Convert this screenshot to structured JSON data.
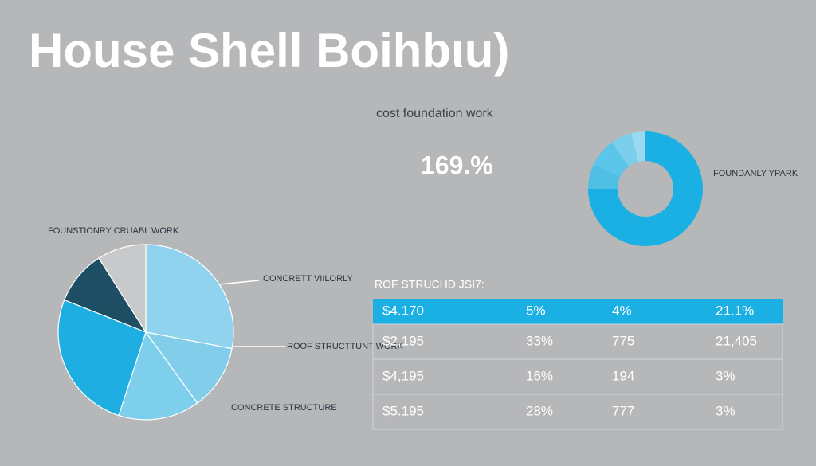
{
  "title": "House Shell Boihbιu)",
  "kpi": {
    "label": "cost foundation work",
    "value": "169.%"
  },
  "chart_data": [
    {
      "type": "pie",
      "values": [
        28,
        12,
        15,
        26,
        10,
        9
      ],
      "colors": [
        "#8fd3ee",
        "#82cde9",
        "#7dcfeb",
        "#1eaee2",
        "#1d4e63",
        "#c8c9cb"
      ],
      "annotations": [
        "FOUNSTIONRY CRUABL WORK",
        "CONCRETT VIILORLY",
        "ROOF STRUCTTUNT WORK",
        "CONCRETE STRUCTURE"
      ]
    },
    {
      "type": "donut",
      "values": [
        75,
        7,
        8,
        6,
        4
      ],
      "colors": [
        "#1ab0e4",
        "#4fbfe6",
        "#5cc5ea",
        "#7ccfec",
        "#9ad9f0"
      ],
      "annotations": [
        "FOUNDANLY YPARK"
      ]
    }
  ],
  "table": {
    "title": "ROF STRUCHD JSI7:",
    "rows": [
      [
        "$4.170",
        "5%",
        "4%",
        "21.1%"
      ],
      [
        "$2,195",
        "33%",
        "775",
        "21,405"
      ],
      [
        "$4,195",
        "16%",
        "194",
        "3%"
      ],
      [
        "$5.195",
        "28%",
        "777",
        "3%"
      ]
    ]
  }
}
